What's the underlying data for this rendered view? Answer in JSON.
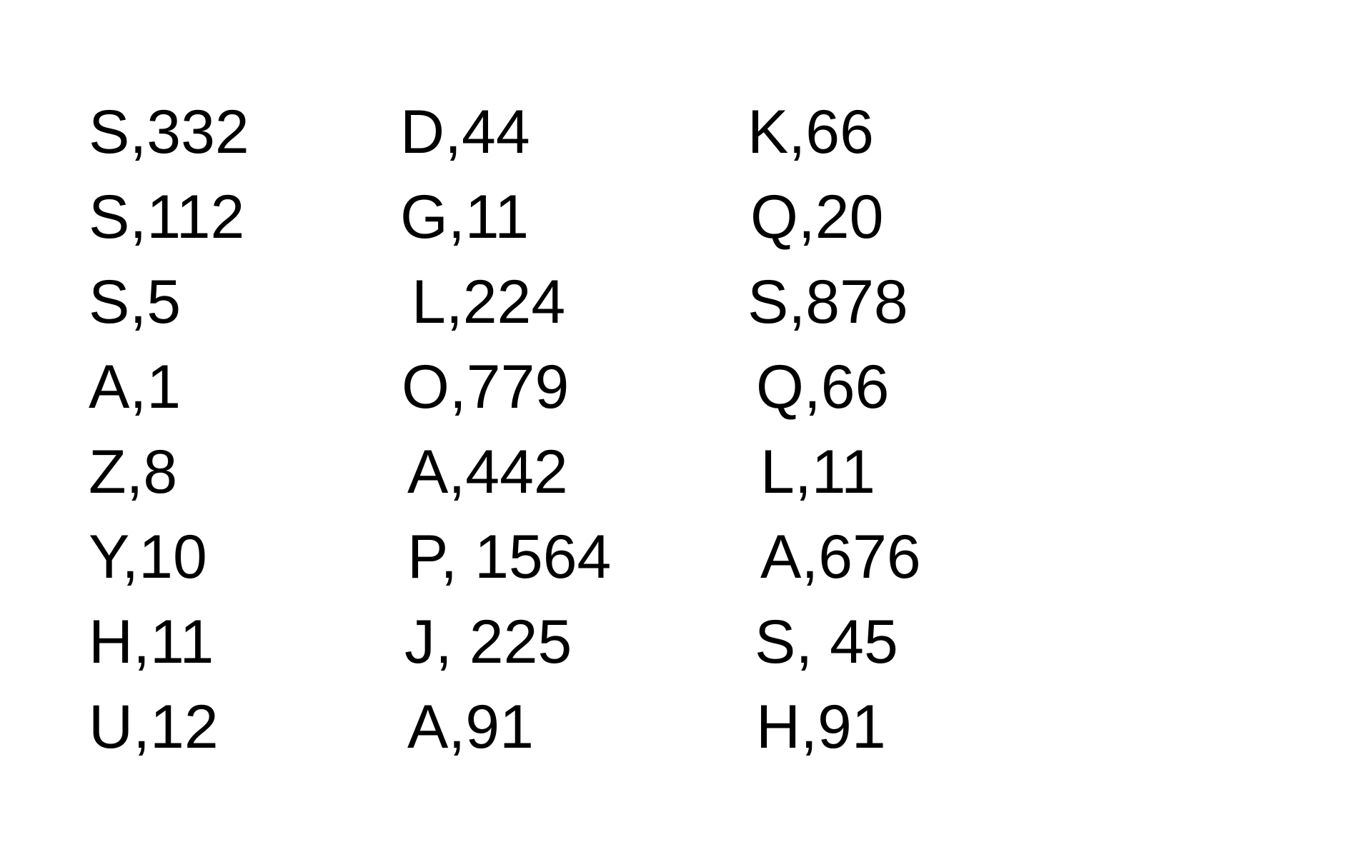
{
  "columns": [
    {
      "entries": [
        "S,332",
        "S,112",
        "S,5",
        "A,1",
        "Z,8",
        "Y,10",
        "H,11",
        "U,12"
      ]
    },
    {
      "entries": [
        "D,44",
        "G,11",
        "L,224",
        "O,779",
        "A,442",
        "P, 1564",
        "J, 225",
        "A,91"
      ]
    },
    {
      "entries": [
        "K,66",
        "Q,20",
        "S,878",
        "Q,66",
        "L,11",
        "A,676",
        "S, 45",
        "H,91"
      ]
    }
  ]
}
